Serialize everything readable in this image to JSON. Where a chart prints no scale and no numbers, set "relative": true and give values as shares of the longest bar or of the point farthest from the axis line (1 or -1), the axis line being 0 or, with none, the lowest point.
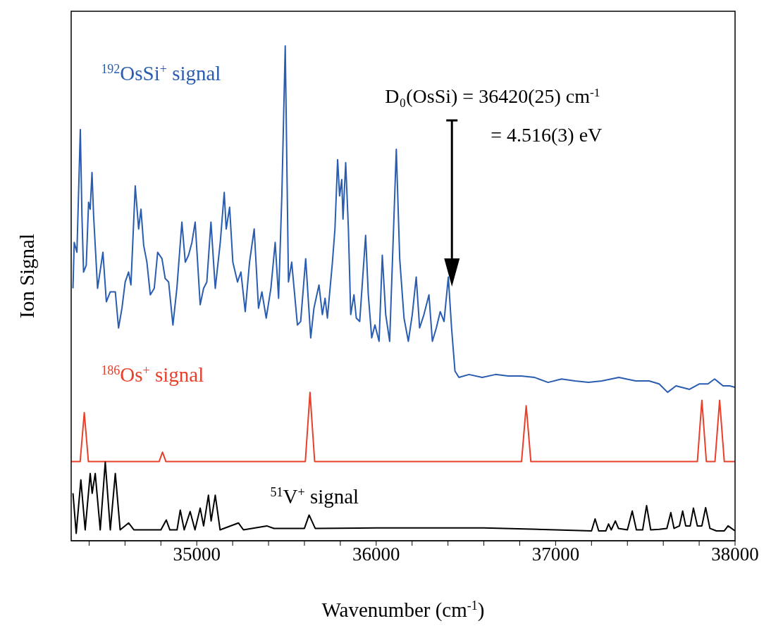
{
  "chart_data": {
    "type": "line",
    "relative": true,
    "xlabel": "Wavenumber (cm$^{-1}$)",
    "ylabel": "Ion Signal",
    "marker": "none",
    "line_style": "solid",
    "xlim": [
      34300,
      38000
    ],
    "xticks": [
      {
        "value": 34400,
        "label": null
      },
      {
        "value": 34600,
        "label": null
      },
      {
        "value": 34800,
        "label": null
      },
      35000,
      {
        "value": 35200,
        "label": null
      },
      {
        "value": 35400,
        "label": null
      },
      {
        "value": 35600,
        "label": null
      },
      {
        "value": 35800,
        "label": null
      },
      36000,
      {
        "value": 36200,
        "label": null
      },
      {
        "value": 36400,
        "label": null
      },
      {
        "value": 36600,
        "label": null
      },
      {
        "value": 36800,
        "label": null
      },
      37000,
      {
        "value": 37200,
        "label": null
      },
      {
        "value": 37400,
        "label": null
      },
      {
        "value": 37600,
        "label": null
      },
      {
        "value": 37800,
        "label": null
      },
      38000
    ],
    "annotations": [
      "D₀(OsSi) = 36420(25) cm$^{-1}$",
      "=  4.516(3) eV"
    ],
    "series": [
      {
        "name": "$^{192}$OsSi$^{+}$ signal",
        "color": "#2a5db0",
        "x": [
          34310,
          34317,
          34332,
          34351,
          34360,
          34369,
          34384,
          34397,
          34406,
          34416,
          34425,
          34447,
          34477,
          34496,
          34518,
          34546,
          34564,
          34583,
          34601,
          34620,
          34633,
          34657,
          34676,
          34689,
          34704,
          34722,
          34741,
          34763,
          34782,
          34806,
          34824,
          34843,
          34867,
          34889,
          34917,
          34936,
          34954,
          34973,
          34991,
          35019,
          35038,
          35056,
          35079,
          35103,
          35131,
          35153,
          35164,
          35183,
          35201,
          35227,
          35246,
          35270,
          35294,
          35320,
          35344,
          35363,
          35387,
          35413,
          35437,
          35456,
          35474,
          35493,
          35511,
          35529,
          35561,
          35579,
          35607,
          35635,
          35653,
          35681,
          35700,
          35715,
          35728,
          35756,
          35770,
          35785,
          35796,
          35808,
          35815,
          35830,
          35845,
          35858,
          35876,
          35889,
          35908,
          35941,
          35956,
          35975,
          35993,
          36016,
          36034,
          36053,
          36075,
          36112,
          36131,
          36155,
          36179,
          36201,
          36223,
          36242,
          36266,
          36294,
          36313,
          36335,
          36357,
          36378,
          36402,
          36420,
          36439,
          36461,
          36517,
          36591,
          36665,
          36736,
          36808,
          36883,
          36958,
          37033,
          37108,
          37183,
          37258,
          37352,
          37446,
          37521,
          37577,
          37624,
          37671,
          37746,
          37802,
          37849,
          37886,
          37933,
          37970,
          38000
        ],
        "values": [
          0.51,
          0.603,
          0.583,
          0.831,
          0.657,
          0.543,
          0.557,
          0.684,
          0.67,
          0.744,
          0.657,
          0.51,
          0.583,
          0.483,
          0.503,
          0.503,
          0.43,
          0.47,
          0.523,
          0.543,
          0.517,
          0.717,
          0.63,
          0.67,
          0.597,
          0.563,
          0.497,
          0.51,
          0.583,
          0.57,
          0.53,
          0.523,
          0.436,
          0.51,
          0.644,
          0.563,
          0.577,
          0.603,
          0.644,
          0.477,
          0.51,
          0.523,
          0.644,
          0.51,
          0.603,
          0.704,
          0.63,
          0.674,
          0.563,
          0.523,
          0.543,
          0.463,
          0.563,
          0.63,
          0.47,
          0.503,
          0.45,
          0.51,
          0.603,
          0.49,
          0.697,
          1,
          0.523,
          0.563,
          0.436,
          0.443,
          0.57,
          0.41,
          0.47,
          0.517,
          0.457,
          0.49,
          0.45,
          0.563,
          0.63,
          0.77,
          0.697,
          0.73,
          0.65,
          0.764,
          0.63,
          0.457,
          0.497,
          0.45,
          0.443,
          0.617,
          0.497,
          0.41,
          0.436,
          0.403,
          0.577,
          0.457,
          0.403,
          0.791,
          0.57,
          0.45,
          0.403,
          0.457,
          0.533,
          0.43,
          0.457,
          0.497,
          0.403,
          0.43,
          0.463,
          0.443,
          0.533,
          0.43,
          0.343,
          0.33,
          0.336,
          0.33,
          0.336,
          0.333,
          0.333,
          0.33,
          0.32,
          0.327,
          0.323,
          0.32,
          0.323,
          0.33,
          0.323,
          0.323,
          0.317,
          0.3,
          0.313,
          0.306,
          0.317,
          0.317,
          0.327,
          0.313,
          0.313,
          0.31
        ]
      },
      {
        "name": "$^{186}$Os$^{+}$ signal",
        "color": "#e8402a",
        "x": [
          34300,
          34350,
          34373,
          34396,
          34790,
          34809,
          34828,
          35605,
          35631,
          35657,
          36810,
          36836,
          36862,
          37790,
          37815,
          37840,
          37888,
          37914,
          37940,
          38000
        ],
        "values": [
          0.16,
          0.16,
          0.259,
          0.16,
          0.16,
          0.179,
          0.16,
          0.16,
          0.3,
          0.16,
          0.16,
          0.273,
          0.16,
          0.16,
          0.284,
          0.16,
          0.16,
          0.284,
          0.16,
          0.16
        ]
      },
      {
        "name": "$^{51}$V$^{+}$ signal",
        "color": "#000000",
        "x": [
          34310,
          34328,
          34354,
          34378,
          34406,
          34417,
          34434,
          34462,
          34490,
          34518,
          34546,
          34573,
          34620,
          34650,
          34800,
          34830,
          34850,
          34890,
          34908,
          34930,
          34963,
          34990,
          35019,
          35038,
          35065,
          35080,
          35103,
          35130,
          35232,
          35260,
          35390,
          35430,
          35600,
          35626,
          35660,
          36000,
          36300,
          36600,
          37200,
          37220,
          37240,
          37280,
          37295,
          37310,
          37333,
          37350,
          37400,
          37427,
          37450,
          37485,
          37507,
          37530,
          37577,
          37620,
          37642,
          37660,
          37690,
          37708,
          37725,
          37750,
          37768,
          37790,
          37815,
          37836,
          37860,
          37896,
          37940,
          37961,
          38000
        ],
        "values": [
          0.096,
          0.015,
          0.123,
          0.022,
          0.136,
          0.096,
          0.136,
          0.022,
          0.159,
          0.022,
          0.136,
          0.022,
          0.036,
          0.022,
          0.022,
          0.042,
          0.022,
          0.022,
          0.062,
          0.022,
          0.059,
          0.022,
          0.066,
          0.03,
          0.092,
          0.04,
          0.092,
          0.022,
          0.036,
          0.022,
          0.03,
          0.025,
          0.025,
          0.052,
          0.025,
          0.026,
          0.026,
          0.026,
          0.02,
          0.044,
          0.02,
          0.02,
          0.034,
          0.022,
          0.04,
          0.025,
          0.022,
          0.06,
          0.022,
          0.022,
          0.071,
          0.022,
          0.023,
          0.025,
          0.057,
          0.025,
          0.03,
          0.06,
          0.03,
          0.03,
          0.066,
          0.03,
          0.03,
          0.067,
          0.025,
          0.02,
          0.02,
          0.03,
          0.02
        ]
      }
    ]
  }
}
